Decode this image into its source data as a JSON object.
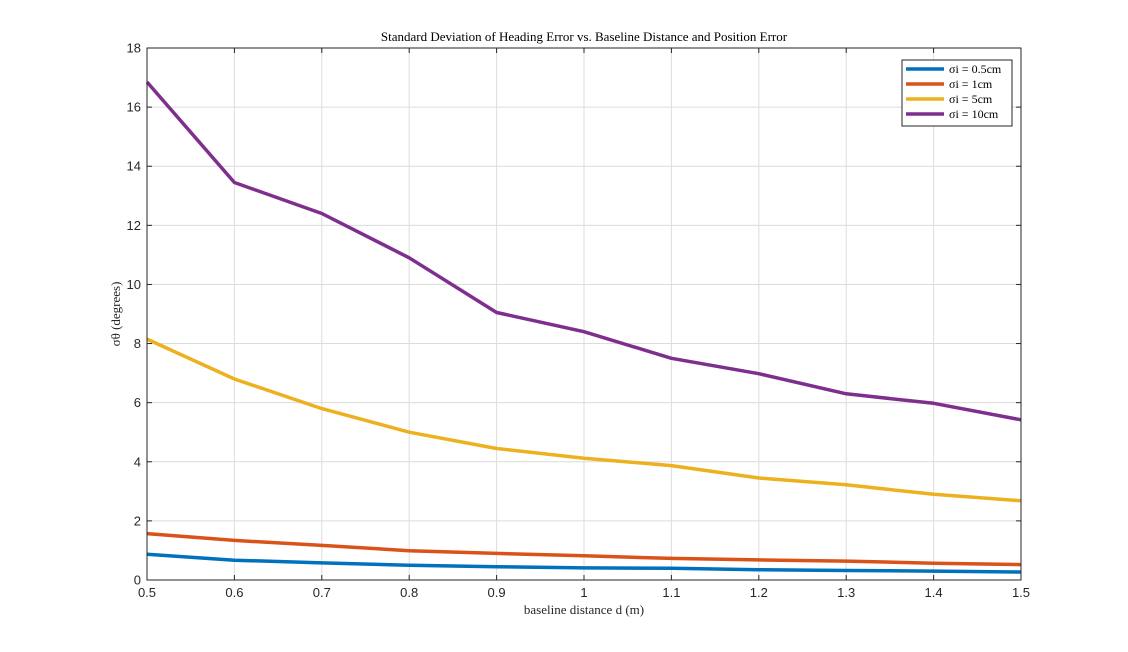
{
  "chart_data": {
    "type": "line",
    "title": "Standard Deviation of Heading Error vs. Baseline Distance and Position Error",
    "xlabel": "baseline distance d (m)",
    "ylabel": "σθ (degrees)",
    "xlim": [
      0.5,
      1.5
    ],
    "ylim": [
      0,
      18
    ],
    "xticks": [
      "0.5",
      "0.6",
      "0.7",
      "0.8",
      "0.9",
      "1",
      "1.1",
      "1.2",
      "1.3",
      "1.4",
      "1.5"
    ],
    "yticks": [
      "0",
      "2",
      "4",
      "6",
      "8",
      "10",
      "12",
      "14",
      "16",
      "18"
    ],
    "grid": true,
    "legend_position": "top-right",
    "x": [
      0.5,
      0.6,
      0.7,
      0.8,
      0.9,
      1.0,
      1.1,
      1.2,
      1.3,
      1.4,
      1.5
    ],
    "series": [
      {
        "name": "σi = 0.5cm",
        "color": "#0072BD",
        "values": [
          0.87,
          0.67,
          0.58,
          0.5,
          0.45,
          0.41,
          0.4,
          0.35,
          0.32,
          0.3,
          0.27
        ]
      },
      {
        "name": "σi = 1cm",
        "color": "#D95319",
        "values": [
          1.57,
          1.34,
          1.17,
          0.99,
          0.9,
          0.82,
          0.73,
          0.68,
          0.64,
          0.57,
          0.52
        ]
      },
      {
        "name": "σi = 5cm",
        "color": "#EDB120",
        "values": [
          8.15,
          6.8,
          5.8,
          5.0,
          4.45,
          4.12,
          3.87,
          3.45,
          3.22,
          2.9,
          2.68
        ]
      },
      {
        "name": "σi = 10cm",
        "color": "#7E2F8E",
        "values": [
          16.85,
          13.45,
          12.4,
          10.9,
          9.05,
          8.4,
          7.5,
          6.98,
          6.3,
          5.98,
          5.42
        ]
      }
    ]
  }
}
